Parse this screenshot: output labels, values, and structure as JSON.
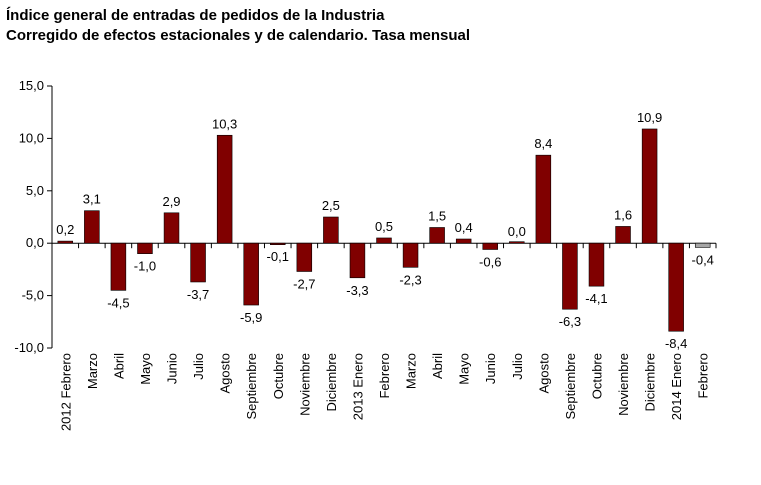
{
  "title": "Índice general de entradas de pedidos de la Industria",
  "subtitle": "Corregido de efectos estacionales y de calendario. Tasa mensual",
  "colors": {
    "bar": "#800000",
    "bar_last": "#a6a6a6",
    "axis": "#000000"
  },
  "chart_data": {
    "type": "bar",
    "title": "Índice general de entradas de pedidos de la Industria",
    "subtitle": "Corregido de efectos estacionales y de calendario. Tasa mensual",
    "xlabel": "",
    "ylabel": "",
    "categories": [
      "2012 Febrero",
      "Marzo",
      "Abril",
      "Mayo",
      "Junio",
      "Julio",
      "Agosto",
      "Septiembre",
      "Octubre",
      "Noviembre",
      "Diciembre",
      "2013 Enero",
      "Febrero",
      "Marzo",
      "Abril",
      "Mayo",
      "Junio",
      "Julio",
      "Agosto",
      "Septiembre",
      "Octubre",
      "Noviembre",
      "Diciembre",
      "2014 Enero",
      "Febrero"
    ],
    "values": [
      0.2,
      3.1,
      -4.5,
      -1.0,
      2.9,
      -3.7,
      10.3,
      -5.9,
      -0.1,
      -2.7,
      2.5,
      -3.3,
      0.5,
      -2.3,
      1.5,
      0.4,
      -0.6,
      0.0,
      8.4,
      -6.3,
      -4.1,
      1.6,
      10.9,
      -8.4,
      -0.4
    ],
    "value_labels": [
      "0,2",
      "3,1",
      "-4,5",
      "-1,0",
      "2,9",
      "-3,7",
      "10,3",
      "-5,9",
      "-0,1",
      "-2,7",
      "2,5",
      "-3,3",
      "0,5",
      "-2,3",
      "1,5",
      "0,4",
      "-0,6",
      "0,0",
      "8,4",
      "-6,3",
      "-4,1",
      "1,6",
      "10,9",
      "-8,4",
      "-0,4"
    ],
    "ylim": [
      -10,
      15
    ],
    "yticks": [
      15,
      10,
      5,
      0,
      -5,
      -10
    ],
    "ytick_labels": [
      "15,0",
      "10,0",
      "5,0",
      "0,0",
      "-5,0",
      "-10,0"
    ],
    "grid": false,
    "legend": "none"
  }
}
